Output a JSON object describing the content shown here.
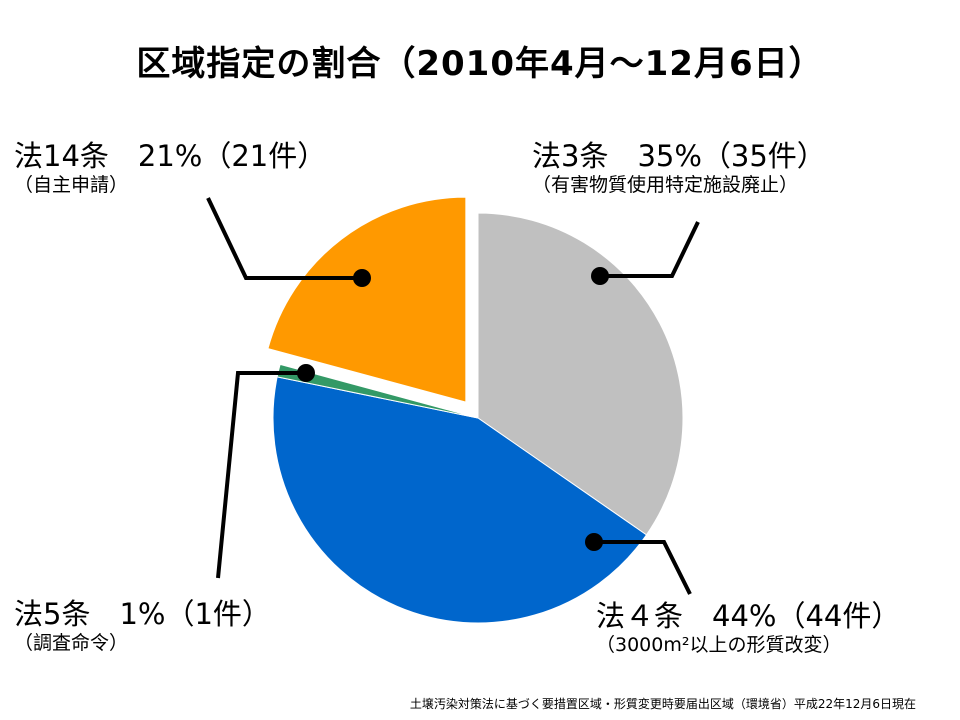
{
  "title": "区域指定の割合（2010年4月～12月6日）",
  "chart_data": {
    "type": "pie",
    "slices": [
      {
        "key": "law3",
        "label": "法3条　35%（35件）",
        "sublabel": "（有害物質使用特定施設廃止）",
        "percent": 35,
        "count": 35,
        "color": "#c0c0c0",
        "exploded": false
      },
      {
        "key": "law4",
        "label": "法４条　44%（44件）",
        "sublabel": "（3000m²以上の形質改変）",
        "percent": 44,
        "count": 44,
        "color": "#0066cc",
        "exploded": false
      },
      {
        "key": "law5",
        "label": "法5条　1%（1件）",
        "sublabel": "（調査命令）",
        "percent": 1,
        "count": 1,
        "color": "#339966",
        "exploded": false
      },
      {
        "key": "law14",
        "label": "法14条　21%（21件）",
        "sublabel": "（自主申請）",
        "percent": 21,
        "count": 21,
        "color": "#ff9900",
        "exploded": true
      }
    ]
  },
  "note": "土壌汚染対策法に基づく要措置区域・形質変更時要届出区域（環境省）平成22年12月6日現在"
}
